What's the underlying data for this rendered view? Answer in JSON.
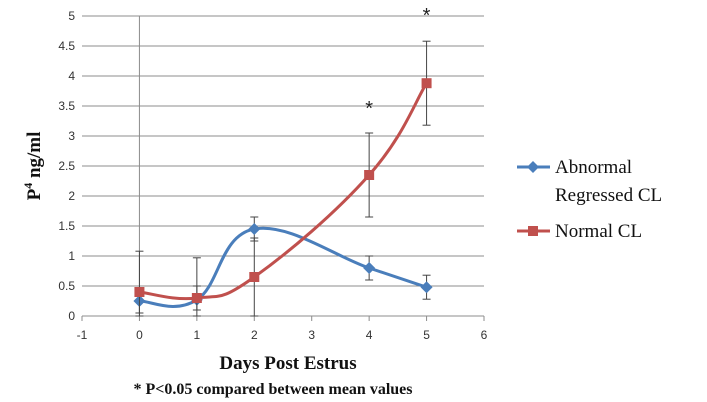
{
  "chart_data": {
    "type": "line",
    "xlabel": "Days Post Estrus",
    "ylabel": "P",
    "ylabel_superscript": "4",
    "ylabel_suffix": " ng/ml",
    "xlim": [
      -1,
      6
    ],
    "ylim": [
      0,
      5
    ],
    "xticks": [
      -1,
      0,
      1,
      2,
      3,
      4,
      5,
      6
    ],
    "yticks": [
      0,
      0.5,
      1,
      1.5,
      2,
      2.5,
      3,
      3.5,
      4,
      4.5,
      5
    ],
    "grid": "horizontal",
    "legend_position": "right",
    "series": [
      {
        "name": "Abnormal Regressed CL",
        "legend_lines": [
          "Abnormal",
          "Regressed CL"
        ],
        "color": "#4a7ebb",
        "marker": "diamond",
        "x": [
          0,
          1,
          2,
          4,
          5
        ],
        "y": [
          0.25,
          0.27,
          1.45,
          0.8,
          0.48
        ],
        "error": [
          0.2,
          0.7,
          0.2,
          0.2,
          0.2
        ]
      },
      {
        "name": "Normal CL",
        "legend_lines": [
          "Normal CL"
        ],
        "color": "#c0504d",
        "marker": "square",
        "x": [
          0,
          1,
          2,
          4,
          5
        ],
        "y": [
          0.4,
          0.3,
          0.65,
          2.35,
          3.88
        ],
        "error": [
          0.68,
          0.2,
          0.65,
          0.7,
          0.7
        ]
      }
    ],
    "annotations": [
      {
        "x": 4,
        "y": 3.35,
        "text": "*"
      },
      {
        "x": 5,
        "y": 4.9,
        "text": "*"
      }
    ],
    "footnote": "* P<0.05 compared between mean values"
  }
}
